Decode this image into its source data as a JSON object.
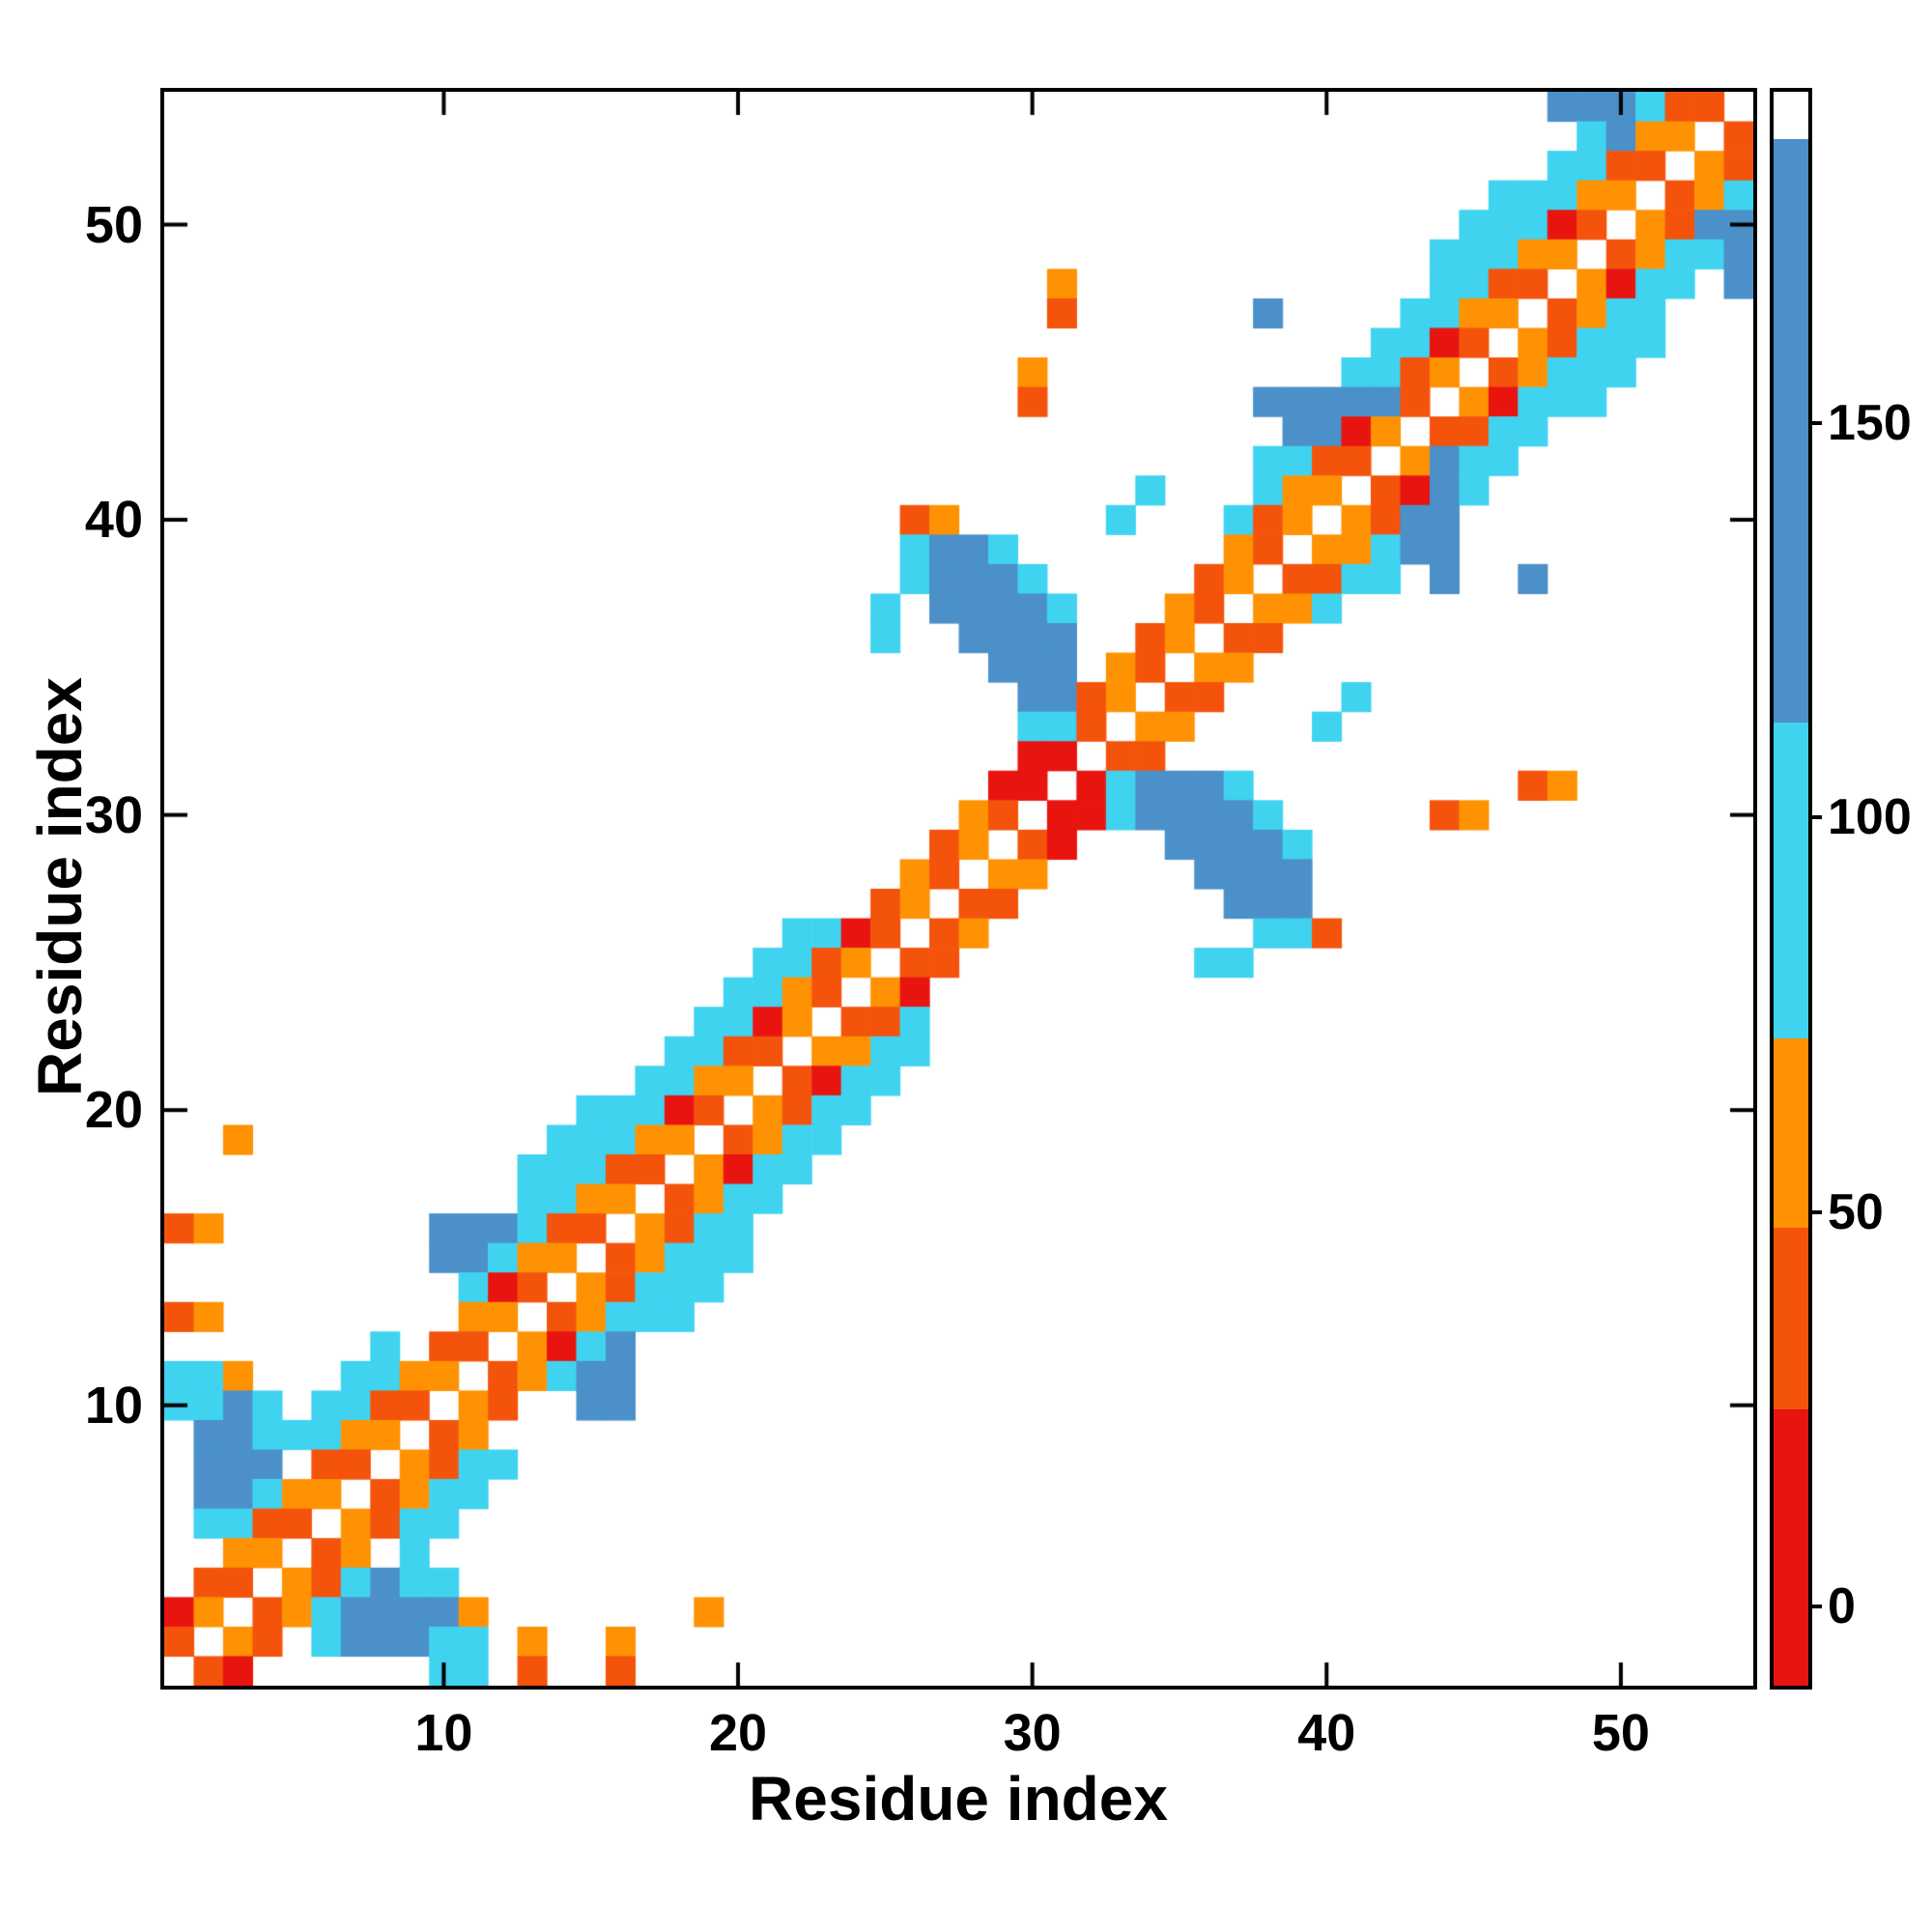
{
  "figure": {
    "background": "#ffffff"
  },
  "chart_data": {
    "type": "heatmap",
    "title": "",
    "xlabel": "Residue index",
    "ylabel": "Residue index",
    "x_ticks": [
      10,
      20,
      30,
      40,
      50
    ],
    "y_ticks": [
      10,
      20,
      30,
      40,
      50
    ],
    "axis_range": [
      0.5,
      54.5
    ],
    "grid_size": 54,
    "grid_on": false,
    "palette": {
      "r": "#e81410",
      "d": "#f4530b",
      "o": "#ff9203",
      "c": "#3fd3f0",
      "b": "#4b90c9"
    },
    "class_values": {
      "r": 8,
      "d": 38,
      "o": 60,
      "c": 92,
      "b": 150
    },
    "rows_top_to_bottom": [
      "...............................................bbbcdd.",
      "................................................cboo.d",
      "...............................................ccdd.od",
      ".............................................cccoo.doc",
      "............................................cccrd.odbb",
      "...........................................cccoo.doccb",
      "..............................o............ccdd.orcc.b",
      "..............................d......b....ccoo.docc...",
      ".........................................ccrd.odccc...",
      ".............................o..........ccdo.doccc....",
      ".............................d.......bbbbbd.orccc.....",
      "......................................bbro.ddcc.......",
      ".....................................ccdd.obcc........",
      ".................................c...coo.drbc.........",
      ".........................do.....c...cdo.odbb..........",
      ".........................cbbc.......od.oocbb..........",
      ".........................cbbbc.....do.ddcc.b..b.......",
      "........................c.bbbbc...od.ooc..............",
      "........................c..bbbb..do.dd................",
      "............................bbb.od.oo.................",
      ".............................bbdo.dd....c.............",
      ".............................ccd.oo....c..............",
      ".............................rr.dd....................",
      "............................rr.rcbbbc.........do......",
      "...........................od.rrcbbbbc.....do.........",
      "..........................do.dr...bbbbc...............",
      ".........................od.oo.....bbbb...............",
      "........................do.dd.......bbb...............",
      ".....................ccrd.do.........ccd..............",
      "....................ccdo.dd........cc.................",
      "...................ccod.or............................",
      "..................ccro.ddc............................",
      ".................ccdd.oocc............................",
      "................ccoo.drcc.............................",
      "..............cccrd.odcc..............................",
      "..o..........cccoo.docc...............................",
      "............cccdd.orcc................................",
      "............ccoo.docc.................................",
      "do.......bbbcdd.odcc..................................",
      ".........bbcoo.doccc..................................",
      "..........crd.odccc...................................",
      "do........oo.doccc....................................",
      ".......c.dd.orcb......................................",
      "cco...ccoo.docbb......................................",
      "ccbc.ccdd.od..bb......................................",
      ".bbcccoo.do...........................................",
      ".bbb.dd.odcc..........................................",
      ".bbcoo.docc...........................................",
      ".ccdd.odcc............................................",
      "..oo.do.c.............................................",
      ".dd.odcbcc............................................",
      "ro.docbbbbo.......o...................................",
      "d.od.cbbbcc.o..o......................................",
      ".dr......cc.d..d......................................"
    ],
    "colorbar": {
      "min": -10,
      "max": 192,
      "ticks": [
        0,
        50,
        100,
        150
      ],
      "segments": [
        {
          "color": "#e81410",
          "from": -10,
          "to": 25
        },
        {
          "color": "#f4530b",
          "from": 25,
          "to": 48
        },
        {
          "color": "#ff9203",
          "from": 48,
          "to": 72
        },
        {
          "color": "#3fd3f0",
          "from": 72,
          "to": 112
        },
        {
          "color": "#4b90c9",
          "from": 112,
          "to": 186
        },
        {
          "color": "#ffffff",
          "from": 186,
          "to": 192
        }
      ]
    }
  }
}
